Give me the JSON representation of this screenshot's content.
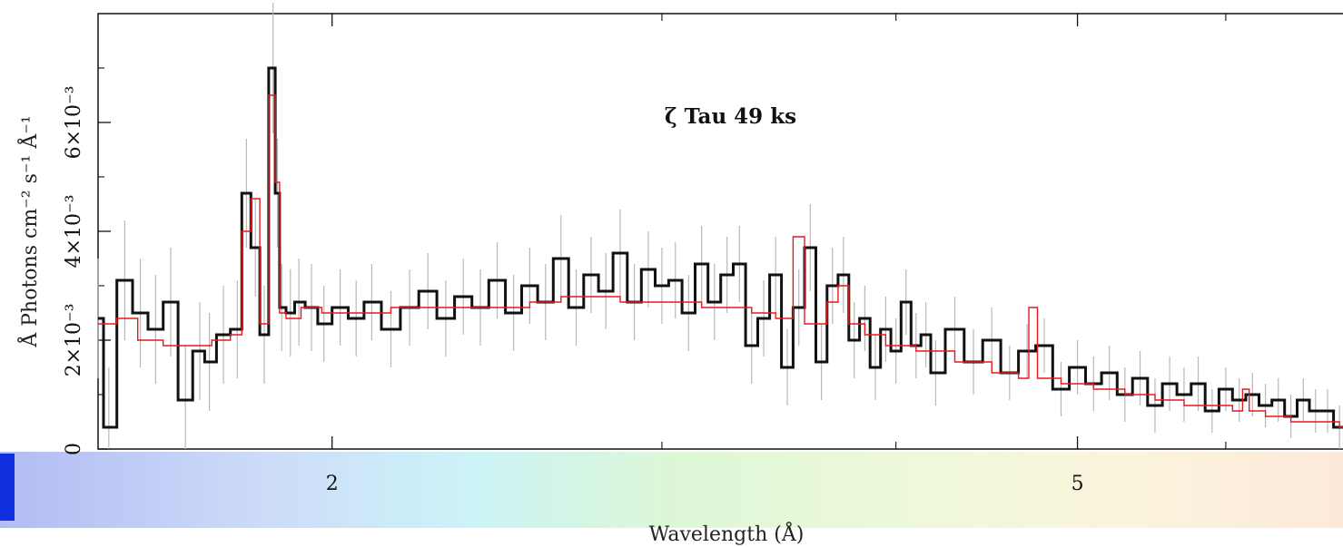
{
  "chart_data": {
    "type": "line",
    "title": "",
    "annotation": "ζ Tau 49 ks",
    "xlabel": "Wavelength (Å)",
    "ylabel": "Å Photons cm⁻² s⁻¹ Å⁻¹",
    "x_scale": "log",
    "xlim": [
      1.5,
      7.0
    ],
    "ylim": [
      0.0,
      0.008
    ],
    "x_ticks": [
      {
        "value": 2,
        "label": "2"
      },
      {
        "value": 5,
        "label": "5"
      }
    ],
    "y_ticks": [
      {
        "value": 0.0,
        "label": "0"
      },
      {
        "value": 0.002,
        "label": "2×10⁻³"
      },
      {
        "value": 0.004,
        "label": "4×10⁻³"
      },
      {
        "value": 0.006,
        "label": "6×10⁻³"
      }
    ],
    "grid": false,
    "series": [
      {
        "role": "data",
        "style": "step",
        "color": "#111111",
        "x": [
          1.5,
          1.52,
          1.55,
          1.58,
          1.61,
          1.64,
          1.67,
          1.7,
          1.72,
          1.75,
          1.78,
          1.8,
          1.82,
          1.84,
          1.86,
          1.87,
          1.88,
          1.9,
          1.92,
          1.95,
          1.98,
          2.02,
          2.06,
          2.1,
          2.15,
          2.2,
          2.25,
          2.3,
          2.35,
          2.4,
          2.45,
          2.5,
          2.55,
          2.6,
          2.65,
          2.7,
          2.75,
          2.8,
          2.85,
          2.9,
          2.95,
          3.0,
          3.05,
          3.1,
          3.15,
          3.2,
          3.25,
          3.3,
          3.35,
          3.4,
          3.45,
          3.5,
          3.55,
          3.6,
          3.65,
          3.7,
          3.75,
          3.8,
          3.85,
          3.9,
          3.95,
          4.0,
          4.05,
          4.1,
          4.15,
          4.2,
          4.3,
          4.4,
          4.5,
          4.6,
          4.7,
          4.8,
          4.9,
          5.0,
          5.1,
          5.2,
          5.3,
          5.4,
          5.5,
          5.6,
          5.7,
          5.8,
          5.9,
          6.0,
          6.1,
          6.2,
          6.3,
          6.4,
          6.5,
          6.6,
          6.7,
          6.8,
          6.9,
          7.0
        ],
        "y": [
          0.0024,
          0.0004,
          0.0031,
          0.0025,
          0.0022,
          0.0027,
          0.0009,
          0.0018,
          0.0016,
          0.0021,
          0.0022,
          0.0047,
          0.0037,
          0.0021,
          0.007,
          0.0047,
          0.0026,
          0.0025,
          0.0027,
          0.0026,
          0.0023,
          0.0026,
          0.0024,
          0.0027,
          0.0022,
          0.0026,
          0.0029,
          0.0024,
          0.0028,
          0.0026,
          0.0031,
          0.0025,
          0.003,
          0.0027,
          0.0035,
          0.0026,
          0.0032,
          0.0029,
          0.0036,
          0.0027,
          0.0033,
          0.003,
          0.0031,
          0.0025,
          0.0034,
          0.0027,
          0.0032,
          0.0034,
          0.0019,
          0.0024,
          0.0032,
          0.0015,
          0.0026,
          0.0037,
          0.0016,
          0.003,
          0.0032,
          0.002,
          0.0024,
          0.0015,
          0.0022,
          0.0018,
          0.0027,
          0.0019,
          0.0021,
          0.0014,
          0.0022,
          0.0016,
          0.002,
          0.0014,
          0.0018,
          0.0019,
          0.0011,
          0.0015,
          0.0012,
          0.0014,
          0.001,
          0.0013,
          0.0008,
          0.0012,
          0.001,
          0.0012,
          0.0007,
          0.0011,
          0.0009,
          0.001,
          0.0008,
          0.0009,
          0.0006,
          0.0009,
          0.0007,
          0.0007,
          0.0004,
          0.0004
        ],
        "err": [
          0.0011,
          0.0011,
          0.0011,
          0.001,
          0.001,
          0.001,
          0.001,
          0.0009,
          0.0009,
          0.0009,
          0.0009,
          0.001,
          0.0009,
          0.0009,
          0.0012,
          0.001,
          0.0008,
          0.0008,
          0.0008,
          0.0008,
          0.0007,
          0.0007,
          0.0007,
          0.0007,
          0.0007,
          0.0007,
          0.0007,
          0.0007,
          0.0007,
          0.0007,
          0.0007,
          0.0007,
          0.0007,
          0.0007,
          0.0008,
          0.0007,
          0.0007,
          0.0007,
          0.0008,
          0.0007,
          0.0007,
          0.0007,
          0.0007,
          0.0007,
          0.0007,
          0.0007,
          0.0007,
          0.0007,
          0.0007,
          0.0007,
          0.0007,
          0.0007,
          0.0007,
          0.0008,
          0.0007,
          0.0007,
          0.0007,
          0.0007,
          0.0006,
          0.0006,
          0.0006,
          0.0006,
          0.0006,
          0.0006,
          0.0006,
          0.0006,
          0.0006,
          0.0006,
          0.0006,
          0.0005,
          0.0005,
          0.0005,
          0.0005,
          0.0005,
          0.0005,
          0.0005,
          0.0005,
          0.0005,
          0.0005,
          0.0005,
          0.0005,
          0.0005,
          0.0004,
          0.0004,
          0.0004,
          0.0004,
          0.0004,
          0.0004,
          0.0004,
          0.0004,
          0.0004,
          0.0004,
          0.0004,
          0.0004
        ]
      },
      {
        "role": "model",
        "style": "step",
        "color": "#e8191e",
        "x": [
          1.5,
          1.52,
          1.55,
          1.6,
          1.65,
          1.7,
          1.75,
          1.78,
          1.8,
          1.82,
          1.84,
          1.86,
          1.87,
          1.88,
          1.9,
          1.95,
          2.0,
          2.1,
          2.2,
          2.3,
          2.4,
          2.5,
          2.6,
          2.7,
          2.8,
          2.9,
          3.0,
          3.1,
          3.2,
          3.3,
          3.4,
          3.5,
          3.55,
          3.6,
          3.65,
          3.7,
          3.75,
          3.8,
          3.9,
          4.0,
          4.2,
          4.4,
          4.6,
          4.7,
          4.72,
          4.8,
          5.0,
          5.2,
          5.4,
          5.6,
          5.8,
          6.0,
          6.1,
          6.15,
          6.2,
          6.4,
          6.6,
          6.8,
          7.0
        ],
        "y": [
          0.0023,
          0.0023,
          0.0024,
          0.002,
          0.0019,
          0.0019,
          0.002,
          0.0021,
          0.004,
          0.0046,
          0.0023,
          0.0065,
          0.0049,
          0.0025,
          0.0024,
          0.0026,
          0.0025,
          0.0025,
          0.0026,
          0.0026,
          0.0026,
          0.0026,
          0.0027,
          0.0028,
          0.0028,
          0.0027,
          0.0027,
          0.0027,
          0.0026,
          0.0026,
          0.0025,
          0.0024,
          0.0039,
          0.0023,
          0.0023,
          0.0027,
          0.003,
          0.0023,
          0.0021,
          0.0019,
          0.0018,
          0.0016,
          0.0014,
          0.0013,
          0.0026,
          0.0013,
          0.0012,
          0.0011,
          0.001,
          0.0009,
          0.0008,
          0.0008,
          0.0007,
          0.0011,
          0.0007,
          0.0006,
          0.0005,
          0.0005,
          0.0004
        ]
      }
    ]
  }
}
